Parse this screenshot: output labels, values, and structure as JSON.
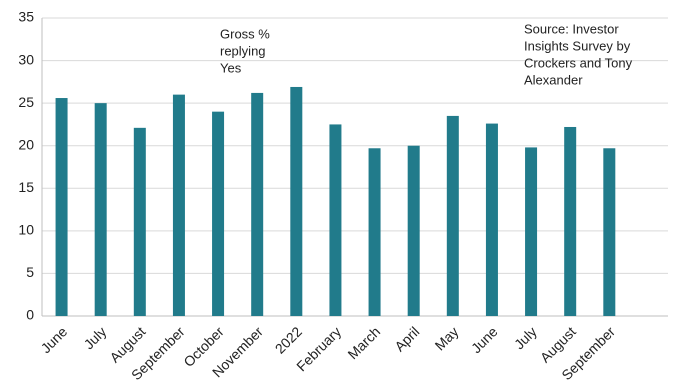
{
  "chart_data": {
    "type": "bar",
    "categories": [
      "June",
      "July",
      "August",
      "September",
      "October",
      "November",
      "2022",
      "February",
      "March",
      "April",
      "May",
      "June",
      "July",
      "August",
      "September"
    ],
    "values": [
      25.6,
      25.0,
      22.1,
      26.0,
      24.0,
      26.2,
      26.9,
      22.5,
      19.7,
      20.0,
      23.5,
      22.6,
      19.8,
      22.2,
      19.7
    ],
    "color": "#217b8b",
    "ylim": [
      0,
      35
    ],
    "yticks": [
      0,
      5,
      10,
      15,
      20,
      25,
      30,
      35
    ],
    "grid": true,
    "annotations": [
      {
        "lines": [
          "Gross %",
          "replying",
          "Yes"
        ]
      },
      {
        "lines": [
          "Source: Investor",
          "Insights Survey by",
          "Crockers and Tony",
          "Alexander"
        ]
      }
    ]
  }
}
